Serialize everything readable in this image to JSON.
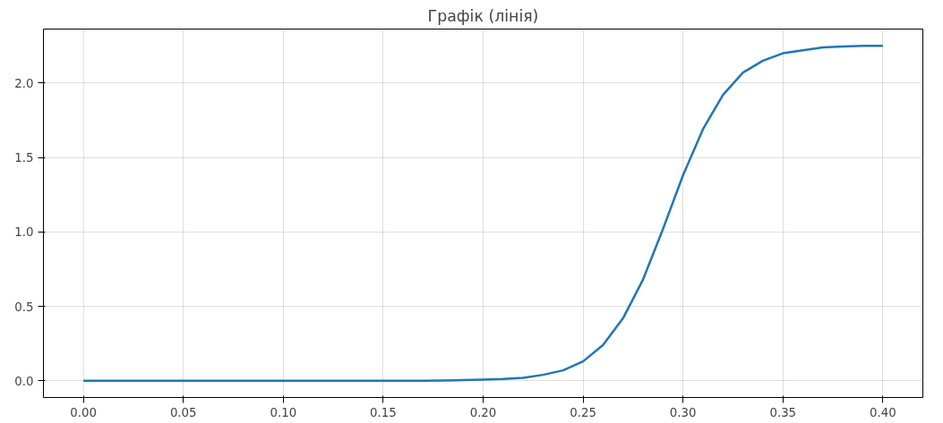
{
  "chart_data": {
    "type": "line",
    "title": "Графік (лінія)",
    "x": [
      0,
      0.01,
      0.02,
      0.03,
      0.04,
      0.05,
      0.06,
      0.07,
      0.08,
      0.09,
      0.1,
      0.11,
      0.12,
      0.13,
      0.14,
      0.15,
      0.16,
      0.17,
      0.18,
      0.19,
      0.2,
      0.21,
      0.22,
      0.23,
      0.24,
      0.25,
      0.26,
      0.27,
      0.28,
      0.29,
      0.3,
      0.31,
      0.32,
      0.33,
      0.34,
      0.35,
      0.36,
      0.37,
      0.38,
      0.39,
      0.4
    ],
    "series": [
      {
        "color": "#1f77b4",
        "values": [
          0,
          0,
          0,
          0,
          0,
          0,
          0,
          0,
          0,
          0,
          0,
          0,
          0,
          0,
          0,
          0,
          0,
          0,
          0.002,
          0.004,
          0.007,
          0.012,
          0.02,
          0.04,
          0.07,
          0.13,
          0.24,
          0.42,
          0.68,
          1.02,
          1.38,
          1.69,
          1.92,
          2.07,
          2.15,
          2.2,
          2.22,
          2.24,
          2.245,
          2.25,
          2.25
        ]
      }
    ],
    "xlim": [
      -0.02,
      0.42
    ],
    "ylim": [
      -0.1125,
      2.3625
    ],
    "xticks": [
      {
        "value": 0,
        "label": "0.00"
      },
      {
        "value": 0.05,
        "label": "0.05"
      },
      {
        "value": 0.1,
        "label": "0.10"
      },
      {
        "value": 0.15,
        "label": "0.15"
      },
      {
        "value": 0.2,
        "label": "0.20"
      },
      {
        "value": 0.25,
        "label": "0.25"
      },
      {
        "value": 0.3,
        "label": "0.30"
      },
      {
        "value": 0.35,
        "label": "0.35"
      },
      {
        "value": 0.4,
        "label": "0.40"
      }
    ],
    "yticks": [
      {
        "value": 0,
        "label": "0.0"
      },
      {
        "value": 0.5,
        "label": "0.5"
      },
      {
        "value": 1,
        "label": "1.0"
      },
      {
        "value": 1.5,
        "label": "1.5"
      },
      {
        "value": 2,
        "label": "2.0"
      }
    ],
    "grid": true
  }
}
